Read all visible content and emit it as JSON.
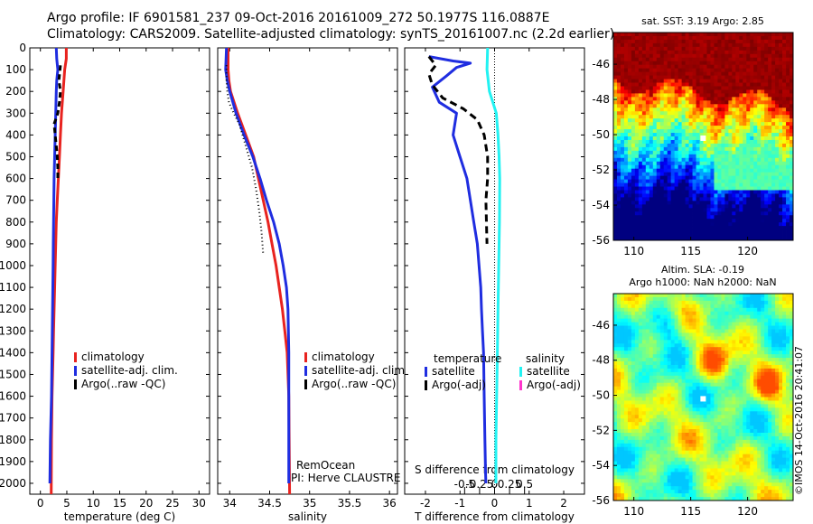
{
  "header": {
    "line1": "Argo profile: IF 6901581_237 09-Oct-2016 20161009_272 50.1977S 116.0887E",
    "line2": "Climatology: CARS2009. Satellite-adjusted climatology: synTS_20161007.nc (2.2d earlier)"
  },
  "stamp": "©IMOS 14-Oct-2016 20:41:07",
  "colors": {
    "climatology": "#e8231f",
    "satellite": "#1f2de0",
    "argo": "#000000",
    "satellite_sal": "#22f2f2",
    "argo_sal": "#ff33cc"
  },
  "chart_data": [
    {
      "type": "line",
      "title": "",
      "xlabel": "temperature (deg C)",
      "ylabel": "",
      "xlim": [
        -2,
        32
      ],
      "ylim": [
        2050,
        0
      ],
      "xticks": [
        0,
        5,
        10,
        15,
        20,
        25,
        30
      ],
      "yticks": [
        0,
        100,
        200,
        300,
        400,
        500,
        600,
        700,
        800,
        900,
        1000,
        1100,
        1200,
        1300,
        1400,
        1500,
        1600,
        1700,
        1800,
        1900,
        2000
      ],
      "legend": [
        "climatology",
        "satellite-adj. clim.",
        "Argo(..raw -QC)"
      ],
      "legend_position": "lower-right",
      "series": [
        {
          "name": "climatology",
          "x": [
            4.9,
            4.9,
            4.6,
            4.3,
            4.0,
            3.8,
            3.6,
            3.4,
            3.2,
            3.0,
            2.9,
            2.8,
            2.7,
            2.6,
            2.5,
            2.4,
            2.3,
            2.2,
            2.1,
            2.05
          ],
          "y": [
            0,
            50,
            100,
            200,
            300,
            400,
            500,
            600,
            700,
            800,
            900,
            1000,
            1100,
            1200,
            1300,
            1400,
            1500,
            1600,
            1800,
            2050
          ]
        },
        {
          "name": "satellite-adj. clim.",
          "x": [
            3.0,
            3.1,
            3.3,
            3.1,
            3.0,
            2.9,
            2.8,
            2.7,
            2.6,
            2.55,
            2.5,
            2.45,
            2.4,
            2.35,
            2.3,
            2.25,
            2.2,
            2.1,
            1.9,
            1.8
          ],
          "y": [
            0,
            50,
            100,
            150,
            200,
            300,
            400,
            500,
            600,
            700,
            800,
            900,
            1000,
            1100,
            1200,
            1300,
            1400,
            1600,
            1800,
            2000
          ]
        },
        {
          "name": "Argo(..raw -QC)",
          "x": [
            3.8,
            3.5,
            3.8,
            3.6,
            3.3,
            2.6,
            2.8,
            3.0,
            3.2,
            3.3,
            3.3
          ],
          "y": [
            80,
            150,
            200,
            250,
            300,
            350,
            400,
            450,
            500,
            550,
            600
          ]
        }
      ]
    },
    {
      "type": "line",
      "title": "",
      "xlabel": "salinity",
      "ylabel": "",
      "xlim": [
        33.85,
        36.1
      ],
      "ylim": [
        2050,
        0
      ],
      "xticks": [
        34,
        34.5,
        35,
        35.5,
        36
      ],
      "xtick_labels": [
        "34",
        "34.5",
        "35",
        "35.5",
        "36"
      ],
      "legend": [
        "climatology",
        "satellite-adj. clim.",
        "Argo(..raw -QC)"
      ],
      "legend_position": "lower-right",
      "annotation_lines": [
        "RemOcean",
        "PI: Herve CLAUSTRE"
      ],
      "series": [
        {
          "name": "climatology",
          "x": [
            33.98,
            33.98,
            33.99,
            34.01,
            34.1,
            34.2,
            34.3,
            34.36,
            34.42,
            34.48,
            34.53,
            34.58,
            34.62,
            34.66,
            34.69,
            34.72,
            34.74,
            34.75
          ],
          "y": [
            0,
            100,
            150,
            200,
            300,
            400,
            500,
            600,
            700,
            800,
            900,
            1000,
            1100,
            1200,
            1300,
            1400,
            1600,
            2050
          ]
        },
        {
          "name": "satellite-adj. clim.",
          "x": [
            33.96,
            33.95,
            33.97,
            34.0,
            34.08,
            34.18,
            34.29,
            34.38,
            34.46,
            34.55,
            34.62,
            34.67,
            34.71,
            34.73,
            34.74,
            34.74,
            34.74,
            34.74
          ],
          "y": [
            0,
            100,
            150,
            200,
            300,
            400,
            500,
            600,
            700,
            800,
            900,
            1000,
            1100,
            1200,
            1400,
            1600,
            1800,
            2000
          ]
        },
        {
          "name": "Argo(..raw -QC)",
          "x": [
            33.96,
            33.96,
            33.97,
            33.99,
            34.05,
            34.12,
            34.2,
            34.28,
            34.33,
            34.37,
            34.4,
            34.42
          ],
          "y": [
            80,
            150,
            200,
            250,
            300,
            350,
            450,
            550,
            650,
            750,
            850,
            950
          ]
        }
      ]
    },
    {
      "type": "line",
      "title": "",
      "xlabel": "T difference from climatology",
      "xlabel_top": "S difference from climatology",
      "ylabel": "",
      "xlim": [
        -2.6,
        2.6
      ],
      "ylim": [
        2050,
        0
      ],
      "xticks": [
        -2,
        -1,
        0,
        1,
        2
      ],
      "xtick_labels": [
        "-2",
        "-1",
        "0",
        "1",
        "2"
      ],
      "sticks": [
        -0.5,
        -0.25,
        0,
        0.25,
        0.5
      ],
      "stick_labels": [
        "-0.5",
        "-0.25",
        "0",
        "0.25",
        "0.5"
      ],
      "legend_temperature": "temperature",
      "legend_salinity": "salinity",
      "legend_temperature_items": [
        "satellite",
        "Argo(-adj)"
      ],
      "legend_salinity_items": [
        "satellite",
        "Argo(-adj)"
      ],
      "legend_position": "lower-center",
      "series": [
        {
          "name": "temperature satellite",
          "x": [
            -1.9,
            -1.2,
            -0.7,
            -1.1,
            -1.4,
            -1.8,
            -1.6,
            -1.1,
            -1.2,
            -1.0,
            -0.8,
            -0.7,
            -0.6,
            -0.5,
            -0.45,
            -0.4,
            -0.38,
            -0.35,
            -0.32,
            -0.3,
            -0.28,
            -0.26,
            -0.25
          ],
          "y": [
            40,
            60,
            70,
            90,
            130,
            180,
            250,
            300,
            400,
            500,
            600,
            700,
            800,
            900,
            1000,
            1100,
            1200,
            1300,
            1400,
            1600,
            1800,
            1950,
            2000
          ]
        },
        {
          "name": "temperature Argo(-adj)",
          "x": [
            -1.9,
            -1.7,
            -1.9,
            -1.8,
            -1.5,
            -0.9,
            -0.5,
            -0.3,
            -0.2,
            -0.2,
            -0.25,
            -0.22
          ],
          "y": [
            40,
            80,
            120,
            170,
            230,
            280,
            330,
            400,
            500,
            600,
            700,
            900
          ]
        },
        {
          "name": "salinity satellite",
          "x": [
            -0.2,
            -0.22,
            -0.15,
            0.05,
            0.1,
            0.13,
            0.15,
            0.14,
            0.12,
            0.1,
            0.08,
            0.06,
            0.04,
            0.04
          ],
          "y": [
            0,
            100,
            200,
            300,
            400,
            500,
            600,
            800,
            1000,
            1200,
            1400,
            1600,
            1800,
            2000
          ]
        }
      ]
    },
    {
      "type": "heatmap",
      "title": "sat. SST: 3.19  Argo: 2.85",
      "xticks": [
        110,
        115,
        120
      ],
      "yticks": [
        -46,
        -48,
        -50,
        -52,
        -54,
        -56
      ],
      "xlim": [
        108.2,
        124
      ],
      "ylim": [
        -56,
        -44.2
      ],
      "marker": {
        "lon": 116.09,
        "lat": -50.2
      }
    },
    {
      "type": "heatmap",
      "title": "Altim. SLA: -0.19",
      "subtitle": "Argo h1000: NaN h2000: NaN",
      "xticks": [
        110,
        115,
        120
      ],
      "yticks": [
        -46,
        -48,
        -50,
        -52,
        -54,
        -56
      ],
      "xlim": [
        108.2,
        124
      ],
      "ylim": [
        -56,
        -44.2
      ],
      "marker": {
        "lon": 116.09,
        "lat": -50.2
      }
    }
  ]
}
